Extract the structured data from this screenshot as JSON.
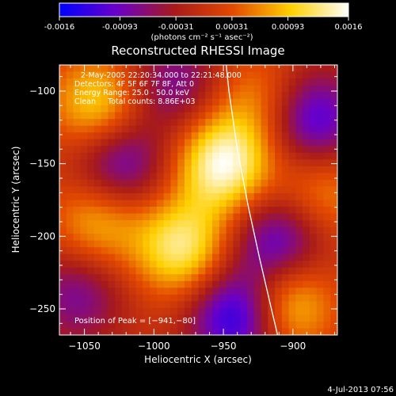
{
  "colorbar": {
    "ticks": [
      "-0.0016",
      "-0.00093",
      "-0.00031",
      "0.00031",
      "0.00093",
      "0.0016"
    ],
    "tick_values": [
      -0.0016,
      -0.00093,
      -0.00031,
      0.00031,
      0.00093,
      0.0016
    ],
    "range": [
      -0.0016,
      0.0016
    ],
    "units_label": "(photons cm⁻² s⁻¹ asec⁻²)",
    "colors": [
      "#0000ff",
      "#6a00c8",
      "#a81a1a",
      "#e34a00",
      "#ffd000",
      "#ffffff"
    ]
  },
  "chart_data": {
    "type": "heatmap",
    "title": "Reconstructed RHESSI Image",
    "xlabel": "Heliocentric X (arcsec)",
    "ylabel": "Heliocentric Y (arcsec)",
    "xlim": [
      -1068,
      -868
    ],
    "ylim": [
      -268,
      -82
    ],
    "x_ticks": [
      -1050,
      -1000,
      -950,
      -900
    ],
    "y_ticks": [
      -100,
      -150,
      -200,
      -250
    ],
    "x_tick_labels": [
      "−1050",
      "−1000",
      "−950",
      "−900"
    ],
    "y_tick_labels": [
      "−100",
      "−150",
      "−200",
      "−250"
    ],
    "annotations": [
      "2-May-2005 22:20:34.000 to 22:21:48.000",
      "Detectors: 4F 5F 6F 7F 8F, Att 0",
      "Energy Range: 25.0 - 50.0 keV",
      "Clean     Total counts: 8.86E+03"
    ],
    "peak_label": "Position of Peak = [−941,−80]",
    "peak": [
      -941,
      -80
    ],
    "limb_x": [
      -948,
      -946,
      -940,
      -932,
      -924,
      -916,
      -911
    ],
    "limb_y": [
      -82,
      -100,
      -140,
      -180,
      -215,
      -248,
      -268
    ],
    "blobs": [
      {
        "x": -950,
        "y": -150,
        "v": 0.00155
      },
      {
        "x": -1040,
        "y": -110,
        "v": 0.0011
      },
      {
        "x": -980,
        "y": -208,
        "v": 0.0013
      },
      {
        "x": -905,
        "y": -245,
        "v": 0.0012
      },
      {
        "x": -925,
        "y": -105,
        "v": 0.0006
      },
      {
        "x": -1040,
        "y": -190,
        "v": 0.0009
      },
      {
        "x": -880,
        "y": -170,
        "v": 0.0007
      },
      {
        "x": -1025,
        "y": -150,
        "v": -0.0011
      },
      {
        "x": -885,
        "y": -120,
        "v": -0.0012
      },
      {
        "x": -910,
        "y": -205,
        "v": -0.0012
      },
      {
        "x": -1055,
        "y": -240,
        "v": -0.0008
      },
      {
        "x": -940,
        "y": -255,
        "v": -0.0015
      },
      {
        "x": -985,
        "y": -95,
        "v": -0.0008
      }
    ]
  },
  "footer": {
    "timestamp": "4-Jul-2013 07:56"
  }
}
